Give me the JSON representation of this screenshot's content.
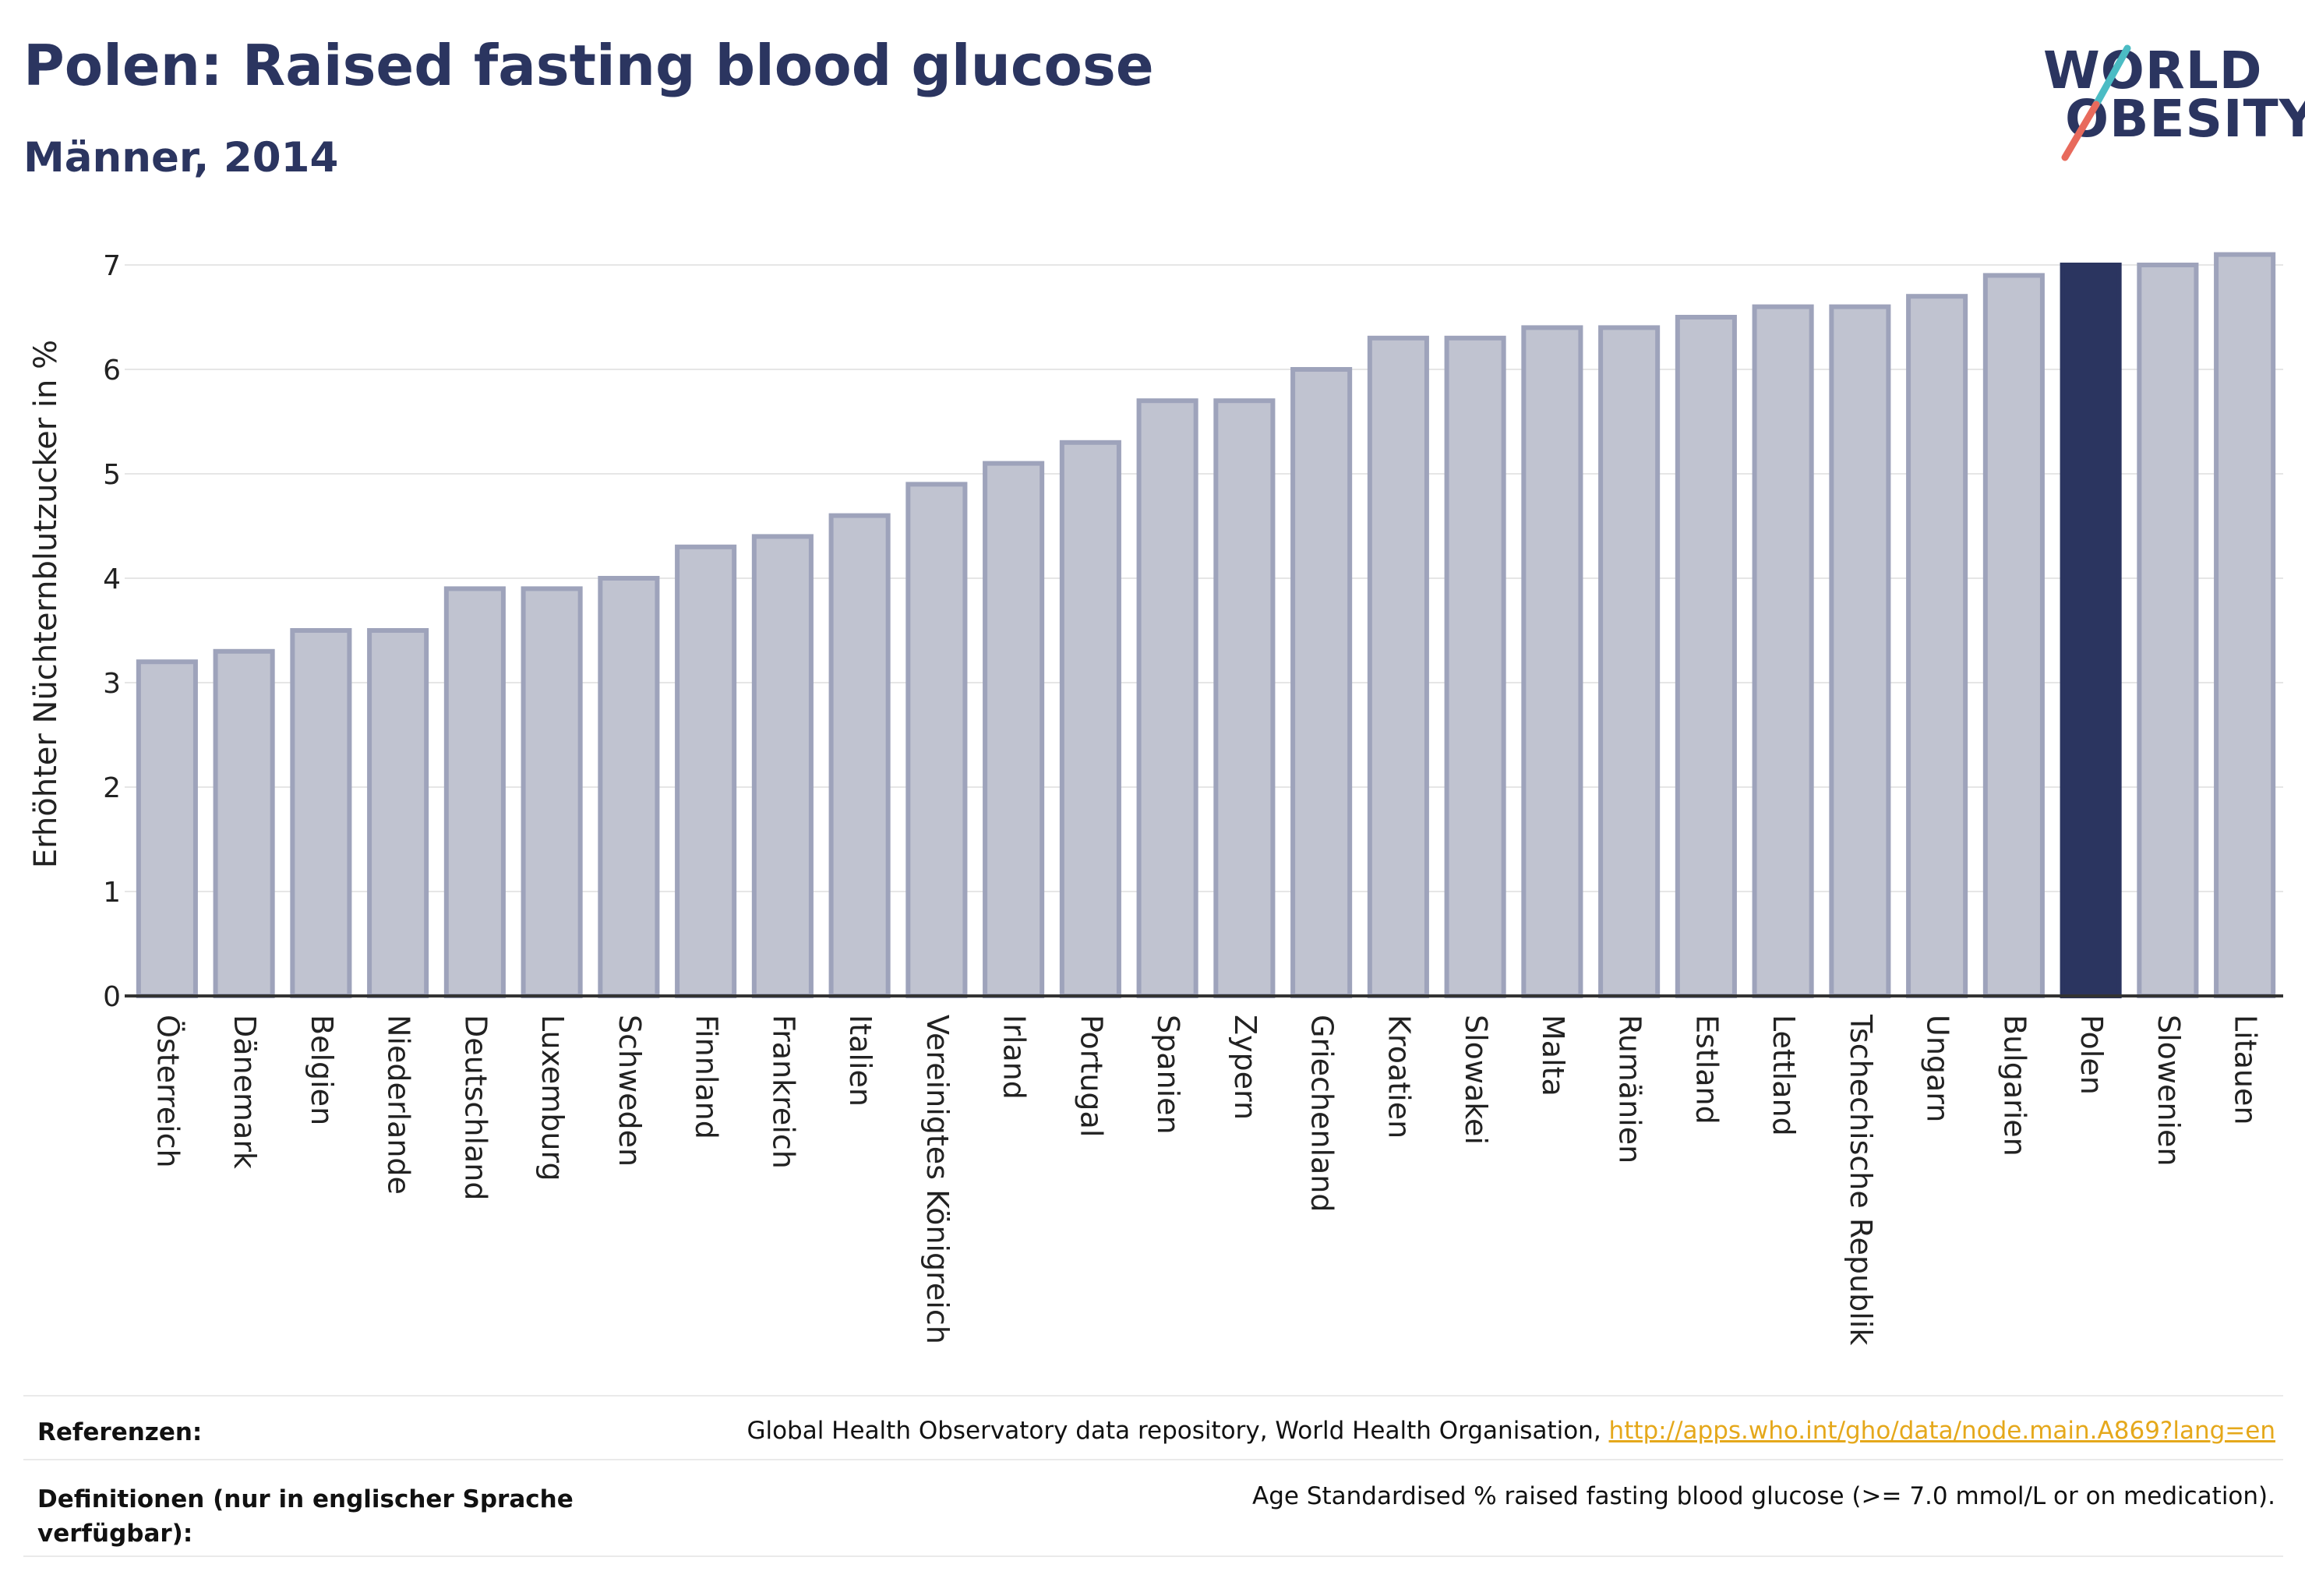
{
  "header": {
    "title": "Polen: Raised fasting blood glucose",
    "subtitle": "Männer, 2014"
  },
  "logo": {
    "line1": "WORLD",
    "line2": "OBESITY"
  },
  "colors": {
    "bar_default": "#c0c3d0",
    "bar_border": "#9ea3bb",
    "bar_highlight": "#2b3560",
    "grid": "#e6e6e6",
    "axis": "#333333",
    "logo_teal": "#4bbcc4",
    "logo_red": "#e86a5c"
  },
  "chart_data": {
    "type": "bar",
    "title": "Polen: Raised fasting blood glucose",
    "subtitle": "Männer, 2014",
    "xlabel": "",
    "ylabel": "Erhöhter Nüchternblutzucker in %",
    "ylim": [
      0,
      7.0
    ],
    "yticks": [
      0,
      1,
      2,
      3,
      4,
      5,
      6,
      7
    ],
    "grid": true,
    "highlight": "Polen",
    "categories": [
      "Österreich",
      "Dänemark",
      "Belgien",
      "Niederlande",
      "Deutschland",
      "Luxemburg",
      "Schweden",
      "Finnland",
      "Frankreich",
      "Italien",
      "Vereinigtes Königreich",
      "Irland",
      "Portugal",
      "Spanien",
      "Zypern",
      "Griechenland",
      "Kroatien",
      "Slowakei",
      "Malta",
      "Rumänien",
      "Estland",
      "Lettland",
      "Tschechische Republik",
      "Ungarn",
      "Bulgarien",
      "Polen",
      "Slowenien",
      "Litauen"
    ],
    "values": [
      3.2,
      3.3,
      3.5,
      3.5,
      3.9,
      3.9,
      4.0,
      4.3,
      4.4,
      4.6,
      4.9,
      5.1,
      5.3,
      5.7,
      5.7,
      6.0,
      6.3,
      6.3,
      6.4,
      6.4,
      6.5,
      6.6,
      6.6,
      6.7,
      6.9,
      7.0,
      7.0,
      7.1
    ]
  },
  "footer": {
    "ref_label": "Referenzen:",
    "ref_text": "Global Health Observatory data repository, World Health Organisation, ",
    "ref_link": "http://apps.who.int/gho/data/node.main.A869?lang=en",
    "def_label": "Definitionen (nur in englischer Sprache verfügbar):",
    "def_text": "Age Standardised % raised fasting blood glucose (>= 7.0 mmol/L or on medication)."
  }
}
